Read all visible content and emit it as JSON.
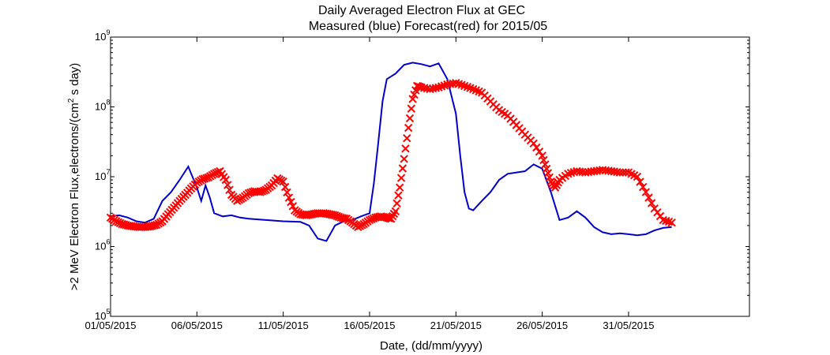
{
  "chart_data": {
    "type": "line",
    "title": "Daily Averaged Electron Flux at GEC",
    "subtitle": "Measured (blue) Forecast(red) for 2015/05",
    "xlabel": "Date, (dd/mm/yyyy)",
    "ylabel": ">2 MeV Electron Flux,electrons/(cm^2 s day)",
    "ylabel_parts": {
      "pre": ">2 MeV Electron Flux,electrons/(cm",
      "exp": "2",
      "post": " s day)"
    },
    "y_scale": "log",
    "ylim": [
      100000,
      1000000000
    ],
    "yticks": [
      {
        "base": "10",
        "exp": "5"
      },
      {
        "base": "10",
        "exp": "6"
      },
      {
        "base": "10",
        "exp": "7"
      },
      {
        "base": "10",
        "exp": "8"
      },
      {
        "base": "10",
        "exp": "9"
      }
    ],
    "xlim": [
      "2015-05-01",
      "2015-06-07"
    ],
    "xticks": [
      "01/05/2015",
      "06/05/2015",
      "11/05/2015",
      "16/05/2015",
      "21/05/2015",
      "26/05/2015",
      "31/05/2015"
    ],
    "grid": false,
    "series": [
      {
        "name": "Measured",
        "color": "#0000cc",
        "marker": "line",
        "points": [
          [
            "2015-05-01 00:00",
            2700000
          ],
          [
            "2015-05-01 12:00",
            2800000
          ],
          [
            "2015-05-02 00:00",
            2600000
          ],
          [
            "2015-05-02 12:00",
            2300000
          ],
          [
            "2015-05-03 00:00",
            2200000
          ],
          [
            "2015-05-03 12:00",
            2500000
          ],
          [
            "2015-05-04 00:00",
            4500000
          ],
          [
            "2015-05-04 12:00",
            6000000
          ],
          [
            "2015-05-05 00:00",
            9000000
          ],
          [
            "2015-05-05 12:00",
            14000000
          ],
          [
            "2015-05-06 00:00",
            7000000
          ],
          [
            "2015-05-06 06:00",
            4500000
          ],
          [
            "2015-05-06 12:00",
            7500000
          ],
          [
            "2015-05-06 18:00",
            5000000
          ],
          [
            "2015-05-07 00:00",
            3000000
          ],
          [
            "2015-05-07 12:00",
            2700000
          ],
          [
            "2015-05-08 00:00",
            2800000
          ],
          [
            "2015-05-08 12:00",
            2600000
          ],
          [
            "2015-05-09 00:00",
            2500000
          ],
          [
            "2015-05-10 00:00",
            2400000
          ],
          [
            "2015-05-11 00:00",
            2300000
          ],
          [
            "2015-05-12 00:00",
            2250000
          ],
          [
            "2015-05-12 12:00",
            2000000
          ],
          [
            "2015-05-13 00:00",
            1300000
          ],
          [
            "2015-05-13 12:00",
            1200000
          ],
          [
            "2015-05-14 00:00",
            2000000
          ],
          [
            "2015-05-14 12:00",
            2300000
          ],
          [
            "2015-05-15 00:00",
            2400000
          ],
          [
            "2015-05-15 12:00",
            2700000
          ],
          [
            "2015-05-16 00:00",
            3000000
          ],
          [
            "2015-05-16 06:00",
            8000000
          ],
          [
            "2015-05-16 12:00",
            30000000
          ],
          [
            "2015-05-16 18:00",
            120000000
          ],
          [
            "2015-05-17 00:00",
            250000000
          ],
          [
            "2015-05-17 12:00",
            300000000
          ],
          [
            "2015-05-18 00:00",
            400000000
          ],
          [
            "2015-05-18 12:00",
            430000000
          ],
          [
            "2015-05-19 00:00",
            410000000
          ],
          [
            "2015-05-19 12:00",
            380000000
          ],
          [
            "2015-05-20 00:00",
            420000000
          ],
          [
            "2015-05-20 12:00",
            250000000
          ],
          [
            "2015-05-21 00:00",
            80000000
          ],
          [
            "2015-05-21 06:00",
            20000000
          ],
          [
            "2015-05-21 12:00",
            6000000
          ],
          [
            "2015-05-21 18:00",
            3500000
          ],
          [
            "2015-05-22 00:00",
            3300000
          ],
          [
            "2015-05-22 12:00",
            4500000
          ],
          [
            "2015-05-23 00:00",
            6000000
          ],
          [
            "2015-05-23 12:00",
            9000000
          ],
          [
            "2015-05-24 00:00",
            11000000
          ],
          [
            "2015-05-25 00:00",
            12000000
          ],
          [
            "2015-05-25 12:00",
            15000000
          ],
          [
            "2015-05-26 00:00",
            13000000
          ],
          [
            "2015-05-26 12:00",
            6000000
          ],
          [
            "2015-05-27 00:00",
            2400000
          ],
          [
            "2015-05-27 12:00",
            2600000
          ],
          [
            "2015-05-28 00:00",
            3200000
          ],
          [
            "2015-05-28 12:00",
            2600000
          ],
          [
            "2015-05-29 00:00",
            1900000
          ],
          [
            "2015-05-29 12:00",
            1600000
          ],
          [
            "2015-05-30 00:00",
            1500000
          ],
          [
            "2015-05-30 12:00",
            1550000
          ],
          [
            "2015-05-31 00:00",
            1500000
          ],
          [
            "2015-05-31 12:00",
            1450000
          ],
          [
            "2015-06-01 00:00",
            1500000
          ],
          [
            "2015-06-01 12:00",
            1700000
          ],
          [
            "2015-06-02 00:00",
            1850000
          ],
          [
            "2015-06-02 12:00",
            1900000
          ]
        ]
      },
      {
        "name": "Forecast",
        "color": "#ff0000",
        "marker": "x",
        "points": [
          [
            "2015-05-01 00:00",
            2600000
          ],
          [
            "2015-05-01 08:00",
            2300000
          ],
          [
            "2015-05-01 16:00",
            2100000
          ],
          [
            "2015-05-02 00:00",
            2000000
          ],
          [
            "2015-05-02 08:00",
            1950000
          ],
          [
            "2015-05-02 16:00",
            1900000
          ],
          [
            "2015-05-03 00:00",
            1900000
          ],
          [
            "2015-05-03 08:00",
            1950000
          ],
          [
            "2015-05-03 16:00",
            2050000
          ],
          [
            "2015-05-04 00:00",
            2300000
          ],
          [
            "2015-05-04 08:00",
            2900000
          ],
          [
            "2015-05-04 16:00",
            3600000
          ],
          [
            "2015-05-05 00:00",
            4500000
          ],
          [
            "2015-05-05 08:00",
            5500000
          ],
          [
            "2015-05-05 16:00",
            6800000
          ],
          [
            "2015-05-06 00:00",
            8200000
          ],
          [
            "2015-05-06 08:00",
            9200000
          ],
          [
            "2015-05-06 16:00",
            9800000
          ],
          [
            "2015-05-07 00:00",
            11000000
          ],
          [
            "2015-05-07 08:00",
            12000000
          ],
          [
            "2015-05-07 16:00",
            9000000
          ],
          [
            "2015-05-08 00:00",
            5500000
          ],
          [
            "2015-05-08 08:00",
            4500000
          ],
          [
            "2015-05-08 16:00",
            5000000
          ],
          [
            "2015-05-09 00:00",
            5800000
          ],
          [
            "2015-05-09 08:00",
            6200000
          ],
          [
            "2015-05-09 16:00",
            6000000
          ],
          [
            "2015-05-10 00:00",
            6500000
          ],
          [
            "2015-05-10 08:00",
            7500000
          ],
          [
            "2015-05-10 16:00",
            9500000
          ],
          [
            "2015-05-11 00:00",
            8500000
          ],
          [
            "2015-05-11 08:00",
            5000000
          ],
          [
            "2015-05-11 16:00",
            3300000
          ],
          [
            "2015-05-12 00:00",
            2900000
          ],
          [
            "2015-05-12 08:00",
            2800000
          ],
          [
            "2015-05-12 16:00",
            2900000
          ],
          [
            "2015-05-13 00:00",
            3000000
          ],
          [
            "2015-05-13 08:00",
            3000000
          ],
          [
            "2015-05-13 16:00",
            2900000
          ],
          [
            "2015-05-14 00:00",
            2800000
          ],
          [
            "2015-05-14 08:00",
            2600000
          ],
          [
            "2015-05-14 16:00",
            2500000
          ],
          [
            "2015-05-15 00:00",
            2200000
          ],
          [
            "2015-05-15 08:00",
            1900000
          ],
          [
            "2015-05-15 16:00",
            2100000
          ],
          [
            "2015-05-16 00:00",
            2400000
          ],
          [
            "2015-05-16 08:00",
            2600000
          ],
          [
            "2015-05-16 16:00",
            2700000
          ],
          [
            "2015-05-17 00:00",
            2600000
          ],
          [
            "2015-05-17 06:00",
            2500000
          ],
          [
            "2015-05-17 12:00",
            3200000
          ],
          [
            "2015-05-17 18:00",
            7000000
          ],
          [
            "2015-05-18 00:00",
            18000000
          ],
          [
            "2015-05-18 06:00",
            50000000
          ],
          [
            "2015-05-18 12:00",
            130000000
          ],
          [
            "2015-05-18 18:00",
            200000000
          ],
          [
            "2015-05-19 00:00",
            190000000
          ],
          [
            "2015-05-19 12:00",
            180000000
          ],
          [
            "2015-05-20 00:00",
            190000000
          ],
          [
            "2015-05-20 12:00",
            210000000
          ],
          [
            "2015-05-21 00:00",
            220000000
          ],
          [
            "2015-05-21 12:00",
            200000000
          ],
          [
            "2015-05-22 00:00",
            180000000
          ],
          [
            "2015-05-22 12:00",
            160000000
          ],
          [
            "2015-05-23 00:00",
            120000000
          ],
          [
            "2015-05-23 12:00",
            90000000
          ],
          [
            "2015-05-24 00:00",
            75000000
          ],
          [
            "2015-05-24 12:00",
            55000000
          ],
          [
            "2015-05-25 00:00",
            40000000
          ],
          [
            "2015-05-25 12:00",
            30000000
          ],
          [
            "2015-05-26 00:00",
            20000000
          ],
          [
            "2015-05-26 06:00",
            13000000
          ],
          [
            "2015-05-26 12:00",
            8500000
          ],
          [
            "2015-05-26 18:00",
            7000000
          ],
          [
            "2015-05-27 00:00",
            9000000
          ],
          [
            "2015-05-27 12:00",
            11000000
          ],
          [
            "2015-05-28 00:00",
            12000000
          ],
          [
            "2015-05-28 12:00",
            11500000
          ],
          [
            "2015-05-29 00:00",
            12000000
          ],
          [
            "2015-05-29 12:00",
            12500000
          ],
          [
            "2015-05-30 00:00",
            12000000
          ],
          [
            "2015-05-30 12:00",
            11500000
          ],
          [
            "2015-05-31 00:00",
            11500000
          ],
          [
            "2015-05-31 12:00",
            10000000
          ],
          [
            "2015-06-01 00:00",
            6000000
          ],
          [
            "2015-06-01 12:00",
            3500000
          ],
          [
            "2015-06-02 00:00",
            2400000
          ],
          [
            "2015-06-02 12:00",
            2200000
          ]
        ]
      }
    ]
  }
}
